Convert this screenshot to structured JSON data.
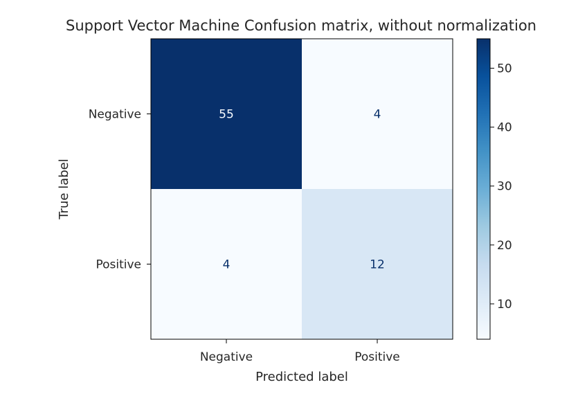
{
  "chart_data": {
    "type": "heatmap",
    "title": "Support Vector Machine Confusion matrix, without normalization",
    "xlabel": "Predicted label",
    "ylabel": "True label",
    "x_categories": [
      "Negative",
      "Positive"
    ],
    "y_categories": [
      "Negative",
      "Positive"
    ],
    "values": [
      [
        55,
        4
      ],
      [
        4,
        12
      ]
    ],
    "colormap": "Blues",
    "color_range": [
      4,
      55
    ],
    "colorbar_ticks": [
      10,
      20,
      30,
      40,
      50
    ],
    "colors": {
      "low": "#f7fbff",
      "high": "#08306b",
      "text_on_dark": "#f7fbff",
      "text_on_light": "#08306b"
    }
  }
}
